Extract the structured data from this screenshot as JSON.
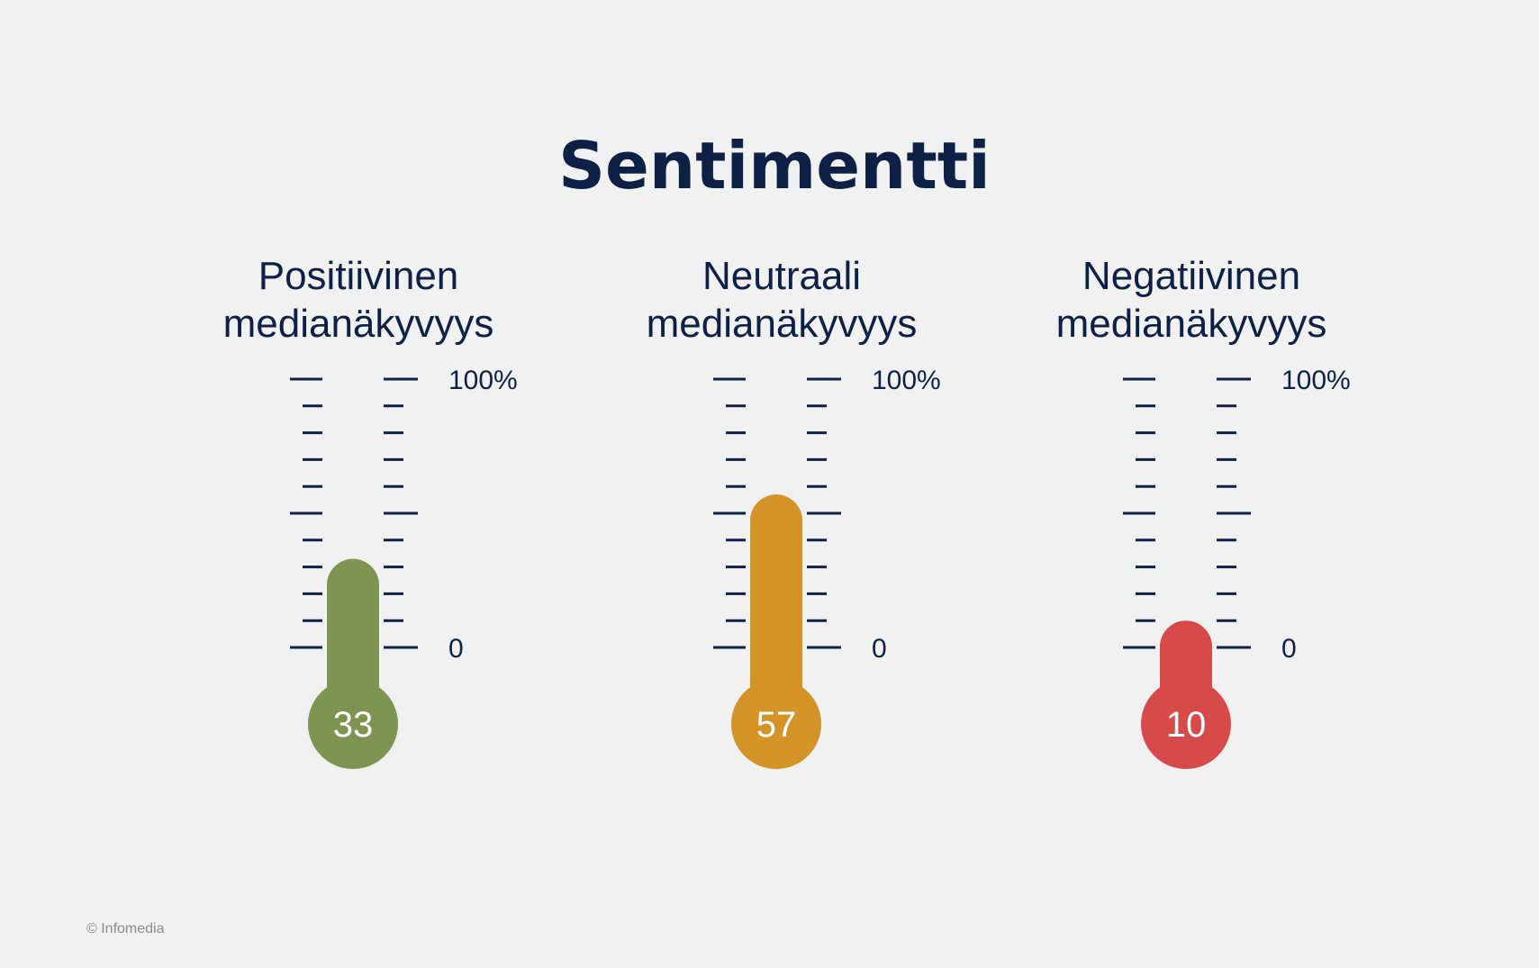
{
  "title": "Sentimentti",
  "footer": "© Infomedia",
  "scale": {
    "max_label": "100%",
    "min_label": "0",
    "max": 100,
    "min": 0
  },
  "chart_data": {
    "type": "thermometer",
    "title": "Sentimentti",
    "ylim": [
      0,
      100
    ],
    "series": [
      {
        "name_line1": "Positiivinen",
        "name_line2": "medianäkyvyys",
        "value": 33,
        "value_label": "33",
        "color": "#7d9551"
      },
      {
        "name_line1": "Neutraali",
        "name_line2": "medianäkyvyys",
        "value": 57,
        "value_label": "57",
        "color": "#d39327"
      },
      {
        "name_line1": "Negatiivinen",
        "name_line2": "medianäkyvyys",
        "value": 10,
        "value_label": "10",
        "color": "#d64b4a"
      }
    ]
  }
}
